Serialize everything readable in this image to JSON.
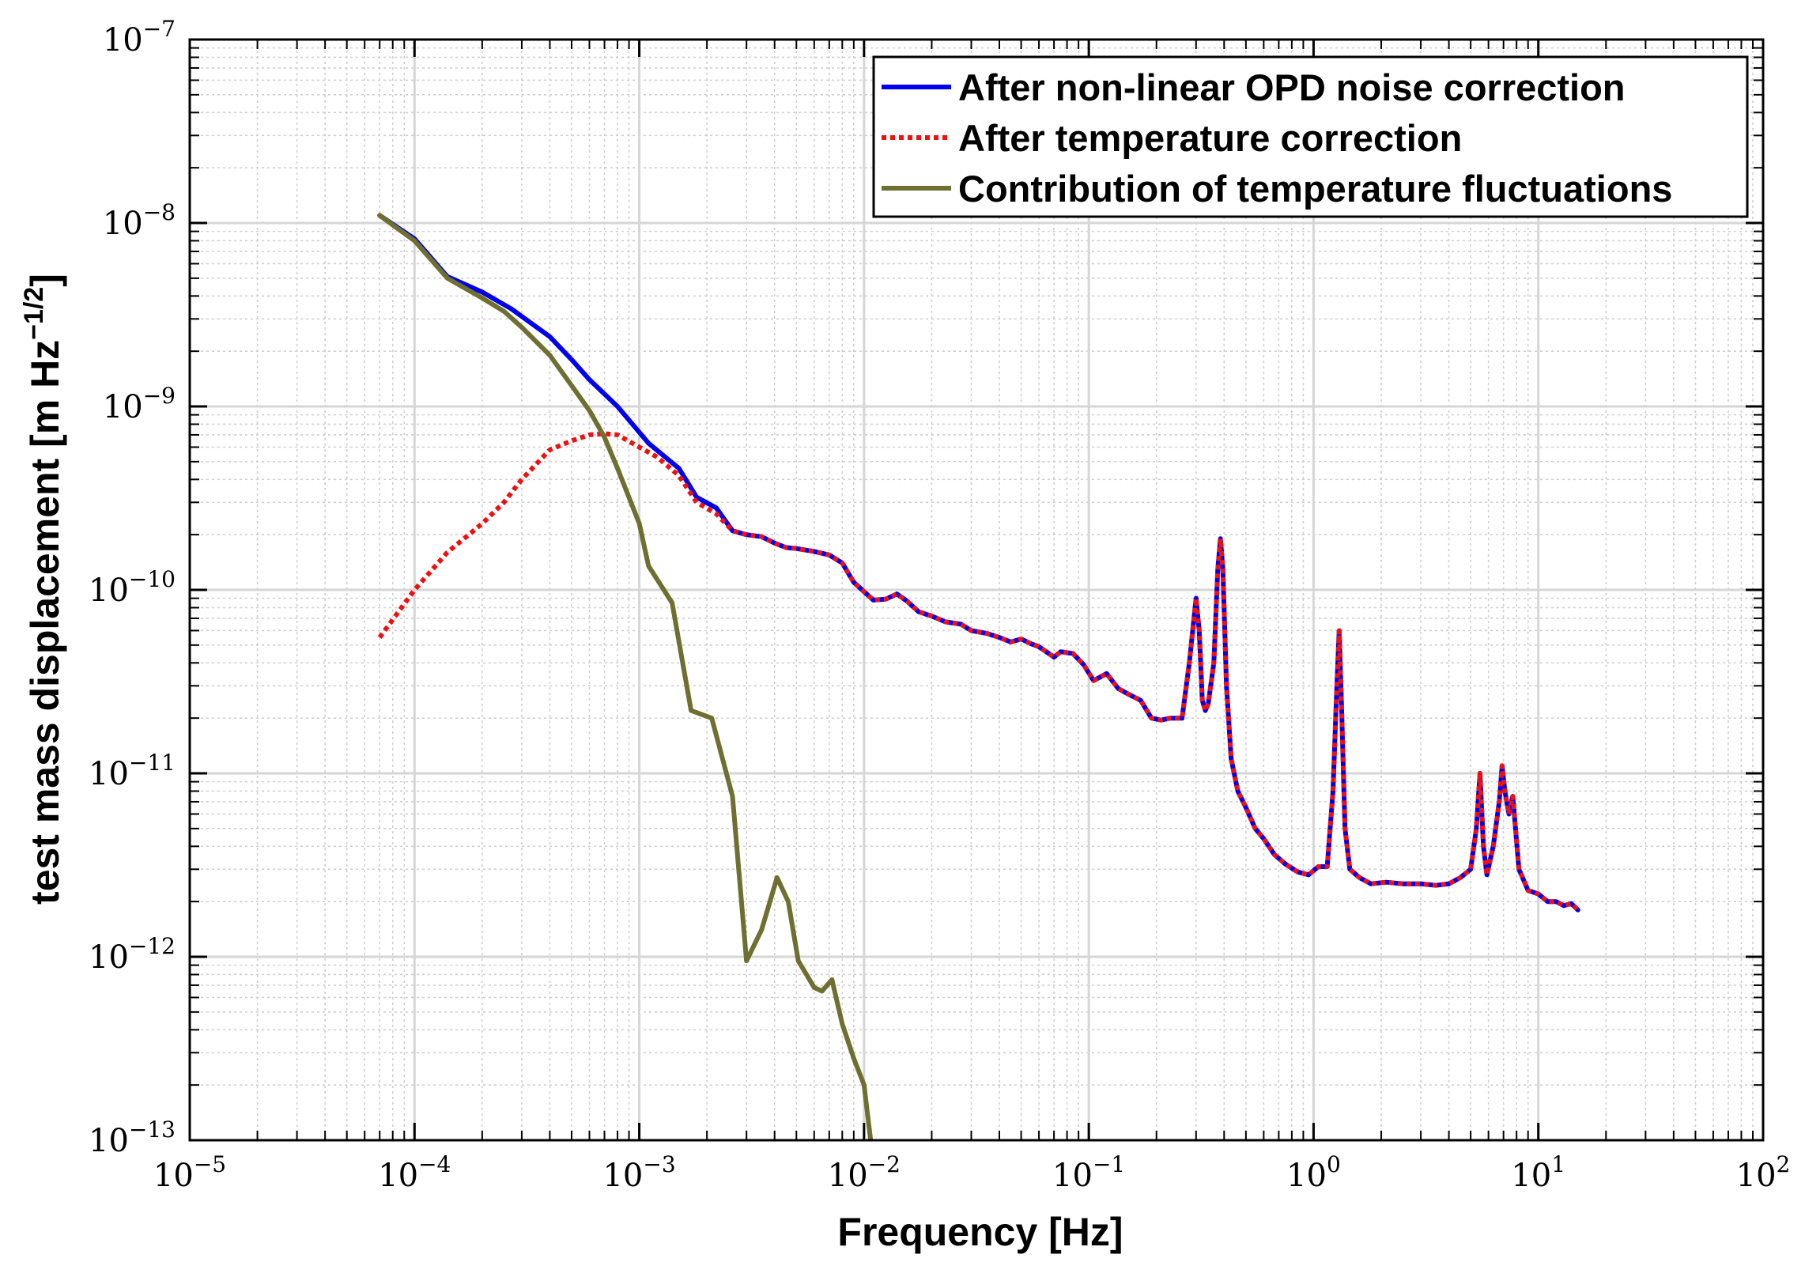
{
  "chart_data": {
    "type": "line",
    "xscale": "log",
    "yscale": "log",
    "xlim": [
      1e-05,
      100
    ],
    "ylim": [
      1e-13,
      1e-07
    ],
    "grid": true,
    "legend_position": "top-right",
    "xlabel": "Frequency  [Hz]",
    "ylabel": {
      "base": "test mass displacement [m Hz",
      "sup": "−1/2",
      "close": "]"
    },
    "x_ticks": [
      {
        "base": "10",
        "exp": "−5"
      },
      {
        "base": "10",
        "exp": "−4"
      },
      {
        "base": "10",
        "exp": "−3"
      },
      {
        "base": "10",
        "exp": "−2"
      },
      {
        "base": "10",
        "exp": "−1"
      },
      {
        "base": "10",
        "exp": "0"
      },
      {
        "base": "10",
        "exp": "1"
      },
      {
        "base": "10",
        "exp": "2"
      }
    ],
    "y_ticks": [
      {
        "base": "10",
        "exp": "−13"
      },
      {
        "base": "10",
        "exp": "−12"
      },
      {
        "base": "10",
        "exp": "−11"
      },
      {
        "base": "10",
        "exp": "−10"
      },
      {
        "base": "10",
        "exp": "−9"
      },
      {
        "base": "10",
        "exp": "−8"
      },
      {
        "base": "10",
        "exp": "−7"
      }
    ],
    "series": [
      {
        "name": "After non-linear OPD noise correction",
        "color": "#0000ee",
        "style": "solid",
        "x": [
          7e-05,
          0.0001,
          0.00014,
          0.0002,
          0.00027,
          0.00035,
          0.0004,
          0.0005,
          0.0006,
          0.0008,
          0.0011,
          0.0015,
          0.0018,
          0.0022,
          0.0026,
          0.003,
          0.0035,
          0.004,
          0.0045,
          0.005,
          0.006,
          0.007,
          0.008,
          0.009,
          0.011,
          0.0125,
          0.014,
          0.0155,
          0.0175,
          0.02,
          0.023,
          0.027,
          0.03,
          0.035,
          0.04,
          0.045,
          0.05,
          0.055,
          0.06,
          0.07,
          0.075,
          0.085,
          0.095,
          0.105,
          0.12,
          0.135,
          0.15,
          0.17,
          0.19,
          0.21,
          0.23,
          0.26,
          0.28,
          0.3,
          0.31,
          0.32,
          0.33,
          0.34,
          0.36,
          0.375,
          0.385,
          0.395,
          0.41,
          0.43,
          0.46,
          0.5,
          0.55,
          0.6,
          0.67,
          0.75,
          0.85,
          0.95,
          1.05,
          1.15,
          1.22,
          1.27,
          1.3,
          1.33,
          1.38,
          1.45,
          1.6,
          1.8,
          2.1,
          2.5,
          3,
          3.5,
          4,
          4.5,
          5,
          5.3,
          5.5,
          5.7,
          5.9,
          6.3,
          6.7,
          6.9,
          7.1,
          7.4,
          7.7,
          8.2,
          9,
          10,
          11,
          12,
          13,
          14,
          15
        ],
        "y": [
          1.1e-08,
          8.2e-09,
          5.1e-09,
          4.2e-09,
          3.4e-09,
          2.7e-09,
          2.4e-09,
          1.8e-09,
          1.4e-09,
          1e-09,
          6.3e-10,
          4.6e-10,
          3.2e-10,
          2.8e-10,
          2.1e-10,
          2e-10,
          1.95e-10,
          1.8e-10,
          1.7e-10,
          1.68e-10,
          1.62e-10,
          1.55e-10,
          1.4e-10,
          1.1e-10,
          8.8e-11,
          8.9e-11,
          9.5e-11,
          8.7e-11,
          7.6e-11,
          7.2e-11,
          6.7e-11,
          6.5e-11,
          6e-11,
          5.8e-11,
          5.5e-11,
          5.2e-11,
          5.4e-11,
          5.1e-11,
          4.9e-11,
          4.3e-11,
          4.6e-11,
          4.5e-11,
          3.9e-11,
          3.2e-11,
          3.5e-11,
          2.9e-11,
          2.7e-11,
          2.5e-11,
          2e-11,
          1.95e-11,
          2e-11,
          2e-11,
          4e-11,
          9e-11,
          6e-11,
          2.5e-11,
          2.2e-11,
          2.4e-11,
          4e-11,
          1.3e-10,
          1.9e-10,
          1.3e-10,
          3e-11,
          1.2e-11,
          8e-12,
          6.5e-12,
          5e-12,
          4.4e-12,
          3.6e-12,
          3.2e-12,
          2.9e-12,
          2.8e-12,
          3.1e-12,
          3.1e-12,
          8e-12,
          3e-11,
          6e-11,
          2.5e-11,
          5e-12,
          3e-12,
          2.7e-12,
          2.5e-12,
          2.55e-12,
          2.5e-12,
          2.5e-12,
          2.45e-12,
          2.5e-12,
          2.7e-12,
          3e-12,
          5e-12,
          1e-11,
          4e-12,
          2.8e-12,
          4e-12,
          7e-12,
          1.1e-11,
          8e-12,
          6e-12,
          7.5e-12,
          3e-12,
          2.3e-12,
          2.2e-12,
          2e-12,
          2e-12,
          1.9e-12,
          1.95e-12,
          1.8e-12
        ]
      },
      {
        "name": "After temperature correction",
        "color": "#ee1111",
        "style": "dotted",
        "x": [
          7e-05,
          0.0001,
          0.00014,
          0.0002,
          0.00025,
          0.0003,
          0.0004,
          0.0005,
          0.0006,
          0.0007,
          0.0008,
          0.001,
          0.0012,
          0.0015,
          0.0018,
          0.0022,
          0.0026,
          0.003,
          0.0035,
          0.004,
          0.0045,
          0.005,
          0.006,
          0.007,
          0.008,
          0.009,
          0.011,
          0.0125,
          0.014,
          0.0155,
          0.0175,
          0.02,
          0.023,
          0.027,
          0.03,
          0.035,
          0.04,
          0.045,
          0.05,
          0.055,
          0.06,
          0.07,
          0.075,
          0.085,
          0.095,
          0.105,
          0.12,
          0.135,
          0.15,
          0.17,
          0.19,
          0.21,
          0.23,
          0.26,
          0.28,
          0.3,
          0.31,
          0.32,
          0.33,
          0.34,
          0.36,
          0.375,
          0.385,
          0.395,
          0.41,
          0.43,
          0.46,
          0.5,
          0.55,
          0.6,
          0.67,
          0.75,
          0.85,
          0.95,
          1.05,
          1.15,
          1.22,
          1.27,
          1.3,
          1.33,
          1.38,
          1.45,
          1.6,
          1.8,
          2.1,
          2.5,
          3,
          3.5,
          4,
          4.5,
          5,
          5.3,
          5.5,
          5.7,
          5.9,
          6.3,
          6.7,
          6.9,
          7.1,
          7.4,
          7.7,
          8.2,
          9,
          10,
          11,
          12,
          13,
          14,
          15
        ],
        "y": [
          5.5e-11,
          1e-10,
          1.6e-10,
          2.3e-10,
          3e-10,
          4e-10,
          5.8e-10,
          6.5e-10,
          7e-10,
          7.1e-10,
          7e-10,
          6e-10,
          5.3e-10,
          4.2e-10,
          3e-10,
          2.6e-10,
          2.1e-10,
          2e-10,
          1.95e-10,
          1.8e-10,
          1.7e-10,
          1.68e-10,
          1.62e-10,
          1.55e-10,
          1.4e-10,
          1.1e-10,
          8.8e-11,
          8.9e-11,
          9.5e-11,
          8.7e-11,
          7.6e-11,
          7.2e-11,
          6.7e-11,
          6.5e-11,
          6e-11,
          5.8e-11,
          5.5e-11,
          5.2e-11,
          5.4e-11,
          5.1e-11,
          4.9e-11,
          4.3e-11,
          4.6e-11,
          4.5e-11,
          3.9e-11,
          3.2e-11,
          3.5e-11,
          2.9e-11,
          2.7e-11,
          2.5e-11,
          2e-11,
          1.95e-11,
          2e-11,
          2e-11,
          4e-11,
          9e-11,
          6e-11,
          2.5e-11,
          2.2e-11,
          2.4e-11,
          4e-11,
          1.3e-10,
          1.9e-10,
          1.3e-10,
          3e-11,
          1.2e-11,
          8e-12,
          6.5e-12,
          5e-12,
          4.4e-12,
          3.6e-12,
          3.2e-12,
          2.9e-12,
          2.8e-12,
          3.1e-12,
          3.1e-12,
          8e-12,
          3e-11,
          6e-11,
          2.5e-11,
          5e-12,
          3e-12,
          2.7e-12,
          2.5e-12,
          2.55e-12,
          2.5e-12,
          2.5e-12,
          2.45e-12,
          2.5e-12,
          2.7e-12,
          3e-12,
          5e-12,
          1e-11,
          4e-12,
          2.8e-12,
          4e-12,
          7e-12,
          1.1e-11,
          8e-12,
          6e-12,
          7.5e-12,
          3e-12,
          2.3e-12,
          2.2e-12,
          2e-12,
          2e-12,
          1.9e-12,
          1.95e-12,
          1.8e-12
        ]
      },
      {
        "name": "Contribution of temperature fluctuations",
        "color": "#6e7031",
        "style": "solid",
        "x": [
          7e-05,
          0.0001,
          0.00014,
          0.0002,
          0.00025,
          0.0003,
          0.0004,
          0.0005,
          0.0006,
          0.0007,
          0.0008,
          0.001,
          0.0011,
          0.0014,
          0.0017,
          0.0021,
          0.0026,
          0.003,
          0.0035,
          0.0041,
          0.0046,
          0.0051,
          0.006,
          0.0065,
          0.0072,
          0.008,
          0.009,
          0.01,
          0.0107
        ],
        "y": [
          1.1e-08,
          8e-09,
          5e-09,
          3.9e-09,
          3.3e-09,
          2.7e-09,
          1.9e-09,
          1.3e-09,
          9.5e-10,
          6.8e-10,
          4.6e-10,
          2.3e-10,
          1.35e-10,
          8.5e-11,
          2.2e-11,
          2e-11,
          7.5e-12,
          9.5e-13,
          1.4e-12,
          2.7e-12,
          2e-12,
          9.5e-13,
          6.8e-13,
          6.5e-13,
          7.5e-13,
          4.3e-13,
          2.8e-13,
          2e-13,
          1e-13
        ]
      }
    ]
  }
}
